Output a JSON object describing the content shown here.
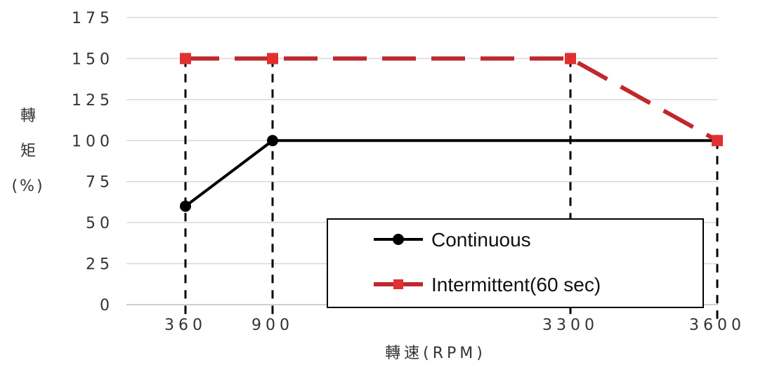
{
  "chart_data": {
    "type": "line",
    "title": "",
    "xlabel": "轉速(RPM)",
    "ylabel": "轉矩(%)",
    "ylabel_lines": [
      "轉",
      "矩",
      "(%)"
    ],
    "x_ticks": [
      360,
      900,
      3300,
      3600
    ],
    "y_ticks": [
      0,
      25,
      50,
      75,
      100,
      125,
      150,
      175
    ],
    "ylim": [
      0,
      175
    ],
    "grid": true,
    "legend_position": "bottom-right",
    "series": [
      {
        "name": "Continuous",
        "color": "#000000",
        "line_style": "solid",
        "marker": "circle",
        "x": [
          360,
          900,
          3600
        ],
        "y": [
          60,
          100,
          100
        ]
      },
      {
        "name": "Intermittent(60 sec)",
        "color": "#c0282d",
        "line_style": "dashed",
        "marker": "square",
        "x": [
          360,
          900,
          3300,
          3600
        ],
        "y": [
          150,
          150,
          150,
          100
        ]
      }
    ]
  }
}
